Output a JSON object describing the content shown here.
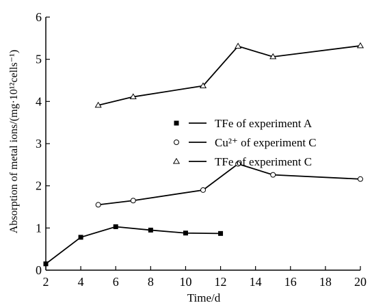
{
  "chart_data": {
    "type": "line",
    "title": "",
    "xlabel": "Time/d",
    "ylabel": "Absorption of metal ions/(mg·10¹²cells⁻¹)",
    "xlim": [
      2,
      20
    ],
    "ylim": [
      0,
      6
    ],
    "x_ticks": [
      2,
      4,
      6,
      8,
      10,
      12,
      14,
      16,
      18,
      20
    ],
    "y_ticks": [
      0,
      1,
      2,
      3,
      4,
      5,
      6
    ],
    "x_tick_labels": [
      "2",
      "4",
      "6",
      "8",
      "10",
      "12",
      "14",
      "16",
      "18",
      "20"
    ],
    "y_tick_labels": [
      "0",
      "1",
      "2",
      "3",
      "4",
      "5",
      "6"
    ],
    "grid": false,
    "legend_position": "center-right",
    "series": [
      {
        "name": "TFe of experiment A",
        "marker": "filled-square",
        "x": [
          2,
          4,
          6,
          8,
          10,
          12
        ],
        "y": [
          0.15,
          0.78,
          1.03,
          0.95,
          0.88,
          0.87
        ]
      },
      {
        "name": "Cu²⁺ of experiment C",
        "marker": "open-circle",
        "x": [
          5,
          7,
          11,
          13,
          15,
          20
        ],
        "y": [
          1.55,
          1.65,
          1.9,
          2.52,
          2.26,
          2.16
        ]
      },
      {
        "name": "TFe of experiment C",
        "marker": "open-triangle",
        "x": [
          5,
          7,
          11,
          13,
          15,
          20
        ],
        "y": [
          3.91,
          4.11,
          4.37,
          5.31,
          5.06,
          5.32
        ]
      }
    ]
  }
}
